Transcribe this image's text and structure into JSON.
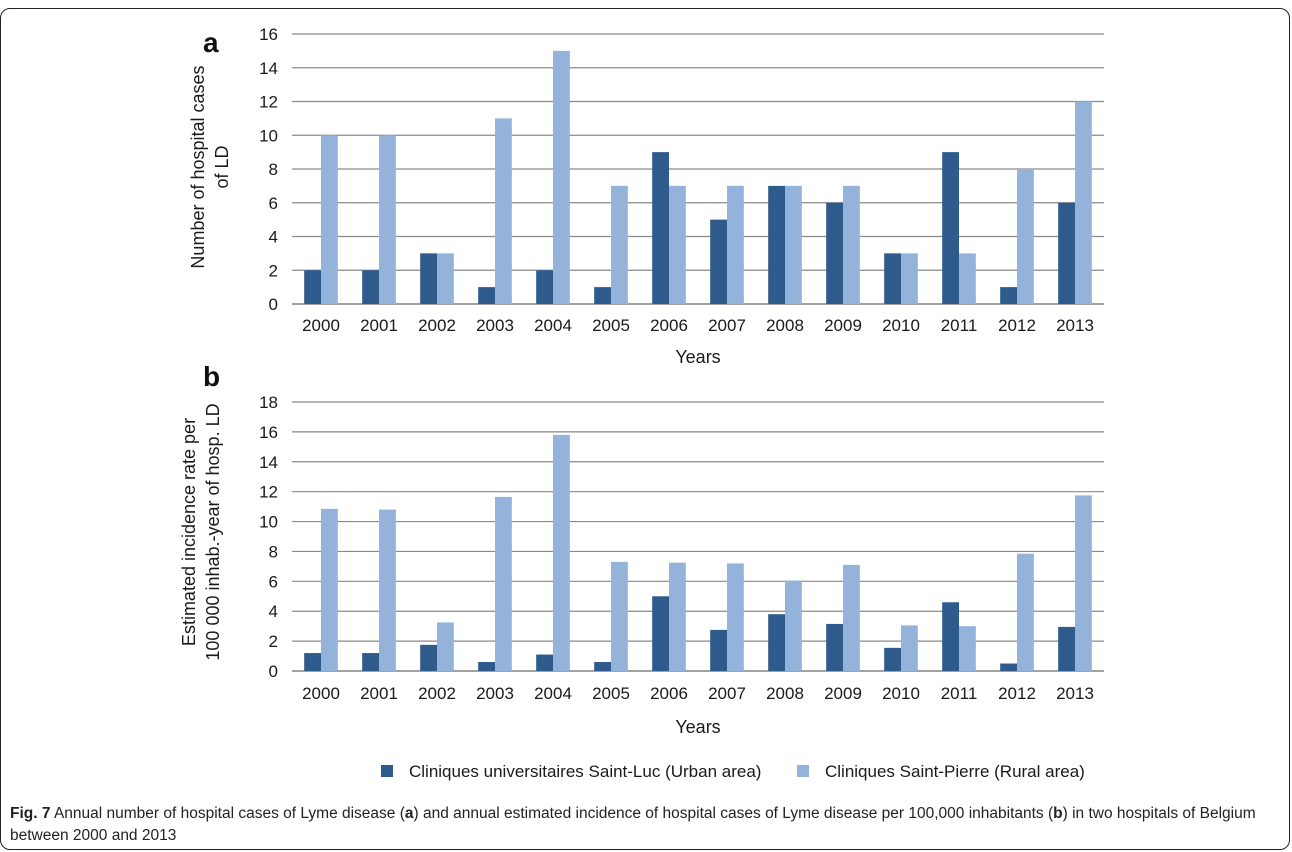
{
  "figure": {
    "caption_label": "Fig. 7",
    "caption_parts": [
      "Annual number of hospital cases of Lyme disease (",
      "a",
      ") and annual estimated incidence of hospital cases of Lyme disease per 100,000 inhabitants (",
      "b",
      ") in two hospitals of Belgium between 2000 and 2013"
    ]
  },
  "legend": {
    "items": [
      {
        "label": "Cliniques universitaires Saint-Luc (Urban area)",
        "color": "#2e5a8c"
      },
      {
        "label": "Cliniques Saint-Pierre (Rural area)",
        "color": "#94b3da"
      }
    ]
  },
  "chart_data": [
    {
      "panel_label": "a",
      "type": "bar",
      "categories": [
        "2000",
        "2001",
        "2002",
        "2003",
        "2004",
        "2005",
        "2006",
        "2007",
        "2008",
        "2009",
        "2010",
        "2011",
        "2012",
        "2013"
      ],
      "series": [
        {
          "name": "Cliniques universitaires Saint-Luc (Urban area)",
          "color": "#2e5a8c",
          "values": [
            2,
            2,
            3,
            1,
            2,
            1,
            9,
            5,
            7,
            6,
            3,
            9,
            1,
            6
          ]
        },
        {
          "name": "Cliniques Saint-Pierre (Rural area)",
          "color": "#94b3da",
          "values": [
            10,
            10,
            3,
            11,
            15,
            7,
            7,
            7,
            7,
            7,
            3,
            3,
            8,
            12
          ]
        }
      ],
      "xlabel": "Years",
      "ylabel_lines": [
        "Number of hospital cases",
        "of LD"
      ],
      "ylim": [
        0,
        16
      ],
      "yticks": [
        0,
        2,
        4,
        6,
        8,
        10,
        12,
        14,
        16
      ],
      "grid": true,
      "legend": "bottom"
    },
    {
      "panel_label": "b",
      "type": "bar",
      "categories": [
        "2000",
        "2001",
        "2002",
        "2003",
        "2004",
        "2005",
        "2006",
        "2007",
        "2008",
        "2009",
        "2010",
        "2011",
        "2012",
        "2013"
      ],
      "series": [
        {
          "name": "Cliniques universitaires Saint-Luc (Urban area)",
          "color": "#2e5a8c",
          "values": [
            1.2,
            1.2,
            1.75,
            0.6,
            1.1,
            0.6,
            5.0,
            2.75,
            3.8,
            3.15,
            1.55,
            4.6,
            0.5,
            2.95
          ]
        },
        {
          "name": "Cliniques Saint-Pierre (Rural area)",
          "color": "#94b3da",
          "values": [
            10.85,
            10.8,
            3.25,
            11.65,
            15.8,
            7.3,
            7.25,
            7.2,
            6.05,
            7.1,
            3.05,
            3.0,
            7.85,
            11.75
          ]
        }
      ],
      "xlabel": "Years",
      "ylabel_lines": [
        "Estimated incidence rate  per",
        "100 000 inhab.-year of hosp. LD"
      ],
      "ylim": [
        0,
        18
      ],
      "yticks": [
        0,
        2,
        4,
        6,
        8,
        10,
        12,
        14,
        16,
        18
      ],
      "grid": true,
      "legend": "bottom"
    }
  ]
}
